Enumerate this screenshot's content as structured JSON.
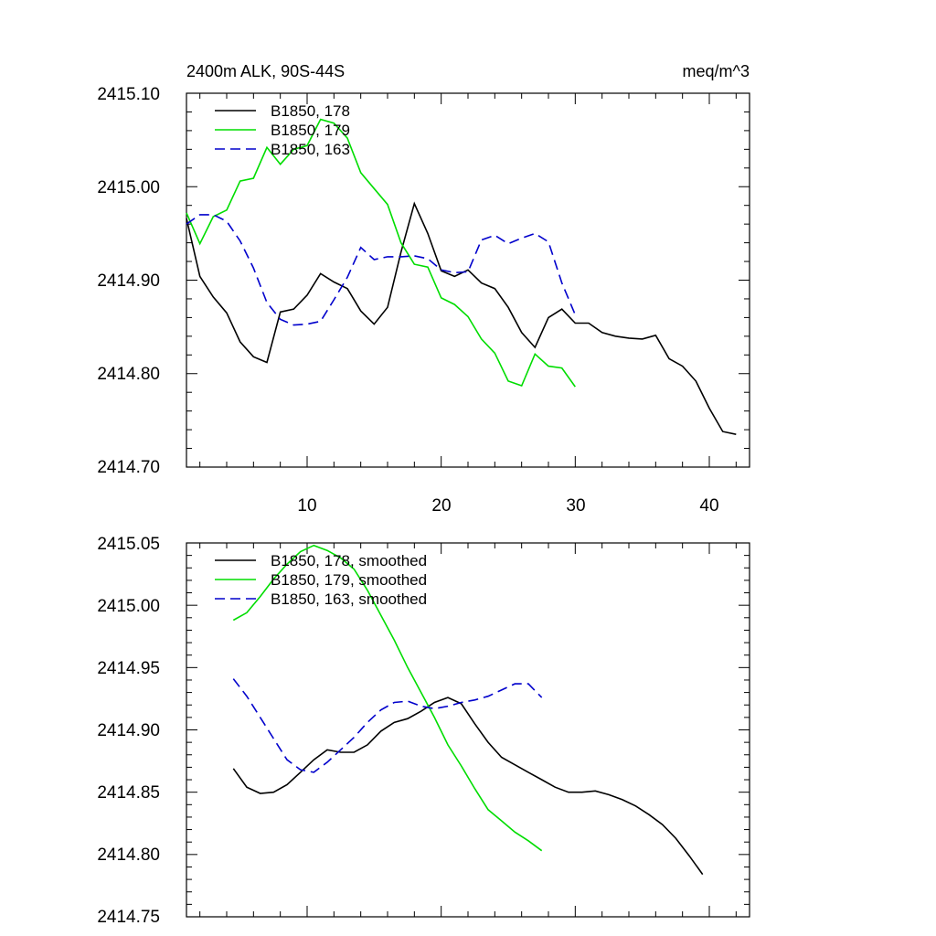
{
  "chart_data": [
    {
      "type": "line",
      "title": "2400m ALK, 90S-44S",
      "units": "meq/m^3",
      "xlim": [
        1,
        43
      ],
      "ylim": [
        2414.7,
        2415.1
      ],
      "x_ticks": [
        10,
        20,
        30,
        40
      ],
      "y_ticks": [
        2414.7,
        2414.8,
        2414.9,
        2415.0,
        2415.1
      ],
      "y_tick_labels": [
        "2414.70",
        "2414.80",
        "2414.90",
        "2415.00",
        "2415.10"
      ],
      "legend_position": "top-left",
      "series": [
        {
          "name": "B1850, 178",
          "color": "#000000",
          "dash": "solid",
          "x": [
            1,
            2,
            3,
            4,
            5,
            6,
            7,
            8,
            9,
            10,
            11,
            12,
            13,
            14,
            15,
            16,
            17,
            18,
            19,
            20,
            21,
            22,
            23,
            24,
            25,
            26,
            27,
            28,
            29,
            30,
            31,
            32,
            33,
            34,
            35,
            36,
            37,
            38,
            39,
            40,
            41,
            42
          ],
          "y": [
            2414.966,
            2414.904,
            2414.882,
            2414.865,
            2414.834,
            2414.818,
            2414.812,
            2414.866,
            2414.869,
            2414.884,
            2414.907,
            2414.898,
            2414.891,
            2414.867,
            2414.853,
            2414.871,
            2414.93,
            2414.982,
            2414.95,
            2414.91,
            2414.904,
            2414.911,
            2414.897,
            2414.891,
            2414.871,
            2414.844,
            2414.828,
            2414.86,
            2414.869,
            2414.854,
            2414.854,
            2414.844,
            2414.84,
            2414.838,
            2414.837,
            2414.841,
            2414.816,
            2414.808,
            2414.792,
            2414.763,
            2414.738,
            2414.735
          ]
        },
        {
          "name": "B1850, 179",
          "color": "#00dd00",
          "dash": "solid",
          "x": [
            1,
            2,
            3,
            4,
            5,
            6,
            7,
            8,
            9,
            10,
            11,
            12,
            13,
            14,
            15,
            16,
            17,
            18,
            19,
            20,
            21,
            22,
            23,
            24,
            25,
            26,
            27,
            28,
            29,
            30
          ],
          "y": [
            2414.972,
            2414.939,
            2414.968,
            2414.975,
            2415.006,
            2415.009,
            2415.042,
            2415.024,
            2415.04,
            2415.044,
            2415.072,
            2415.068,
            2415.052,
            2415.015,
            2414.998,
            2414.981,
            2414.94,
            2414.917,
            2414.914,
            2414.881,
            2414.874,
            2414.861,
            2414.837,
            2414.822,
            2414.792,
            2414.787,
            2414.821,
            2414.808,
            2414.806,
            2414.786
          ]
        },
        {
          "name": "B1850, 163",
          "color": "#0000cc",
          "dash": "dashed",
          "x": [
            1,
            2,
            3,
            4,
            5,
            6,
            7,
            8,
            9,
            10,
            11,
            12,
            13,
            14,
            15,
            16,
            17,
            18,
            19,
            20,
            21,
            22,
            23,
            24,
            25,
            26,
            27,
            28,
            29,
            30
          ],
          "y": [
            2414.96,
            2414.97,
            2414.97,
            2414.963,
            2414.942,
            2414.913,
            2414.876,
            2414.858,
            2414.852,
            2414.853,
            2414.856,
            2414.879,
            2414.903,
            2414.935,
            2414.922,
            2414.925,
            2414.925,
            2414.926,
            2414.923,
            2414.911,
            2414.908,
            2414.909,
            2414.943,
            2414.948,
            2414.939,
            2414.945,
            2414.95,
            2414.941,
            2414.897,
            2414.863
          ]
        }
      ]
    },
    {
      "type": "line",
      "title": "",
      "xlim": [
        1,
        43
      ],
      "ylim": [
        2414.75,
        2415.05
      ],
      "x_ticks": [
        10,
        20,
        30,
        40
      ],
      "y_ticks": [
        2414.75,
        2414.8,
        2414.85,
        2414.9,
        2414.95,
        2415.0,
        2415.05
      ],
      "y_tick_labels": [
        "2414.75",
        "2414.80",
        "2414.85",
        "2414.90",
        "2414.95",
        "2415.00",
        "2415.05"
      ],
      "legend_position": "top-left",
      "series": [
        {
          "name": "B1850, 178, smoothed",
          "color": "#000000",
          "dash": "solid",
          "x": [
            4.5,
            5.5,
            6.5,
            7.5,
            8.5,
            9.5,
            10.5,
            11.5,
            12.5,
            13.5,
            14.5,
            15.5,
            16.5,
            17.5,
            18.5,
            19.5,
            20.5,
            21.5,
            22.5,
            23.5,
            24.5,
            25.5,
            26.5,
            27.5,
            28.5,
            29.5,
            30.5,
            31.5,
            32.5,
            33.5,
            34.5,
            35.5,
            36.5,
            37.5,
            38.5,
            39.5
          ],
          "y": [
            2414.869,
            2414.854,
            2414.849,
            2414.85,
            2414.856,
            2414.866,
            2414.876,
            2414.884,
            2414.882,
            2414.882,
            2414.888,
            2414.899,
            2414.906,
            2414.909,
            2414.915,
            2414.922,
            2414.926,
            2414.921,
            2414.905,
            2414.89,
            2414.878,
            2414.872,
            2414.866,
            2414.86,
            2414.854,
            2414.85,
            2414.85,
            2414.851,
            2414.848,
            2414.844,
            2414.839,
            2414.832,
            2414.824,
            2414.813,
            2414.799,
            2414.784
          ]
        },
        {
          "name": "B1850, 179, smoothed",
          "color": "#00dd00",
          "dash": "solid",
          "x": [
            4.5,
            5.5,
            6.5,
            7.5,
            8.5,
            9.5,
            10.5,
            11.5,
            12.5,
            13.5,
            14.5,
            15.5,
            16.5,
            17.5,
            18.5,
            19.5,
            20.5,
            21.5,
            22.5,
            23.5,
            24.5,
            25.5,
            26.5,
            27.5
          ],
          "y": [
            2414.988,
            2414.994,
            2415.007,
            2415.021,
            2415.033,
            2415.043,
            2415.048,
            2415.044,
            2415.038,
            2415.029,
            2415.012,
            2414.992,
            2414.972,
            2414.95,
            2414.93,
            2414.91,
            2414.888,
            2414.871,
            2414.853,
            2414.836,
            2414.827,
            2414.818,
            2414.811,
            2414.803
          ]
        },
        {
          "name": "B1850, 163, smoothed",
          "color": "#0000cc",
          "dash": "dashed",
          "x": [
            4.5,
            5.5,
            6.5,
            7.5,
            8.5,
            9.5,
            10.5,
            11.5,
            12.5,
            13.5,
            14.5,
            15.5,
            16.5,
            17.5,
            18.5,
            19.5,
            20.5,
            21.5,
            22.5,
            23.5,
            24.5,
            25.5,
            26.5,
            27.5
          ],
          "y": [
            2414.941,
            2414.927,
            2414.91,
            2414.893,
            2414.876,
            2414.868,
            2414.866,
            2414.874,
            2414.884,
            2414.894,
            2414.906,
            2414.916,
            2414.922,
            2414.923,
            2414.919,
            2414.917,
            2414.919,
            2414.922,
            2414.924,
            2414.927,
            2414.932,
            2414.937,
            2414.937,
            2414.926
          ]
        }
      ]
    }
  ]
}
